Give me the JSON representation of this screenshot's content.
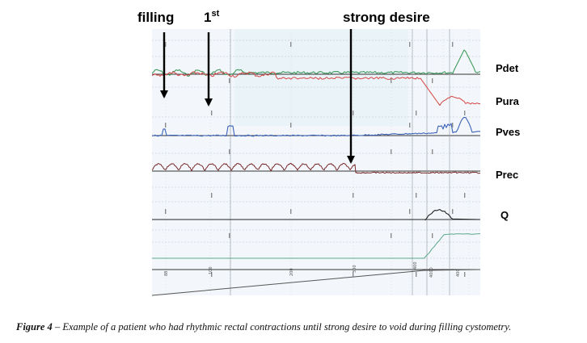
{
  "chart_data": {
    "type": "line",
    "title": "",
    "annotations": [
      {
        "label": "filling",
        "sup": ""
      },
      {
        "label": "1",
        "sup": "st"
      },
      {
        "label": "strong desire",
        "sup": ""
      }
    ],
    "channels": [
      {
        "name": "Pdet",
        "color": "#3f9a5e"
      },
      {
        "name": "Pura",
        "color": "#d64545"
      },
      {
        "name": "Pves",
        "color": "#3c63b8"
      },
      {
        "name": "Prec",
        "color": "#7a2a2a"
      },
      {
        "name": "Q",
        "color": "#222222"
      },
      {
        "name": "",
        "color": "#5aa88a"
      },
      {
        "name": "",
        "color": "#555555"
      }
    ],
    "volume_ticks": [
      "88",
      "100",
      "200",
      "300",
      "400",
      "4000",
      "400"
    ],
    "grid": true
  },
  "caption": {
    "label": "Figure 4",
    "text": " – Example of a patient who had rhythmic rectal contractions until strong desire to void during filling cystometry."
  }
}
